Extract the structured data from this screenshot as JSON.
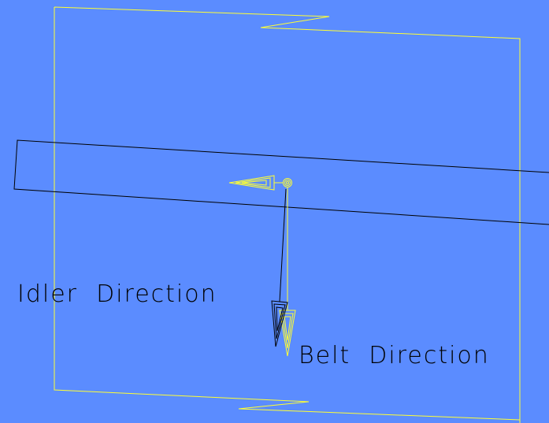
{
  "viewport": {
    "background_color": "#5b8cff"
  },
  "colors": {
    "frame": "#ffff33",
    "belt": "#000000",
    "arrow_yellow": "#ffff33",
    "arrow_black": "#000000",
    "text": "#000000"
  },
  "labels": {
    "idler_direction": "Idler  Direction",
    "belt_direction": "Belt  Direction"
  },
  "icons": {
    "origin": "origin-circle-icon",
    "direction_arrow": "arrow-icon"
  }
}
